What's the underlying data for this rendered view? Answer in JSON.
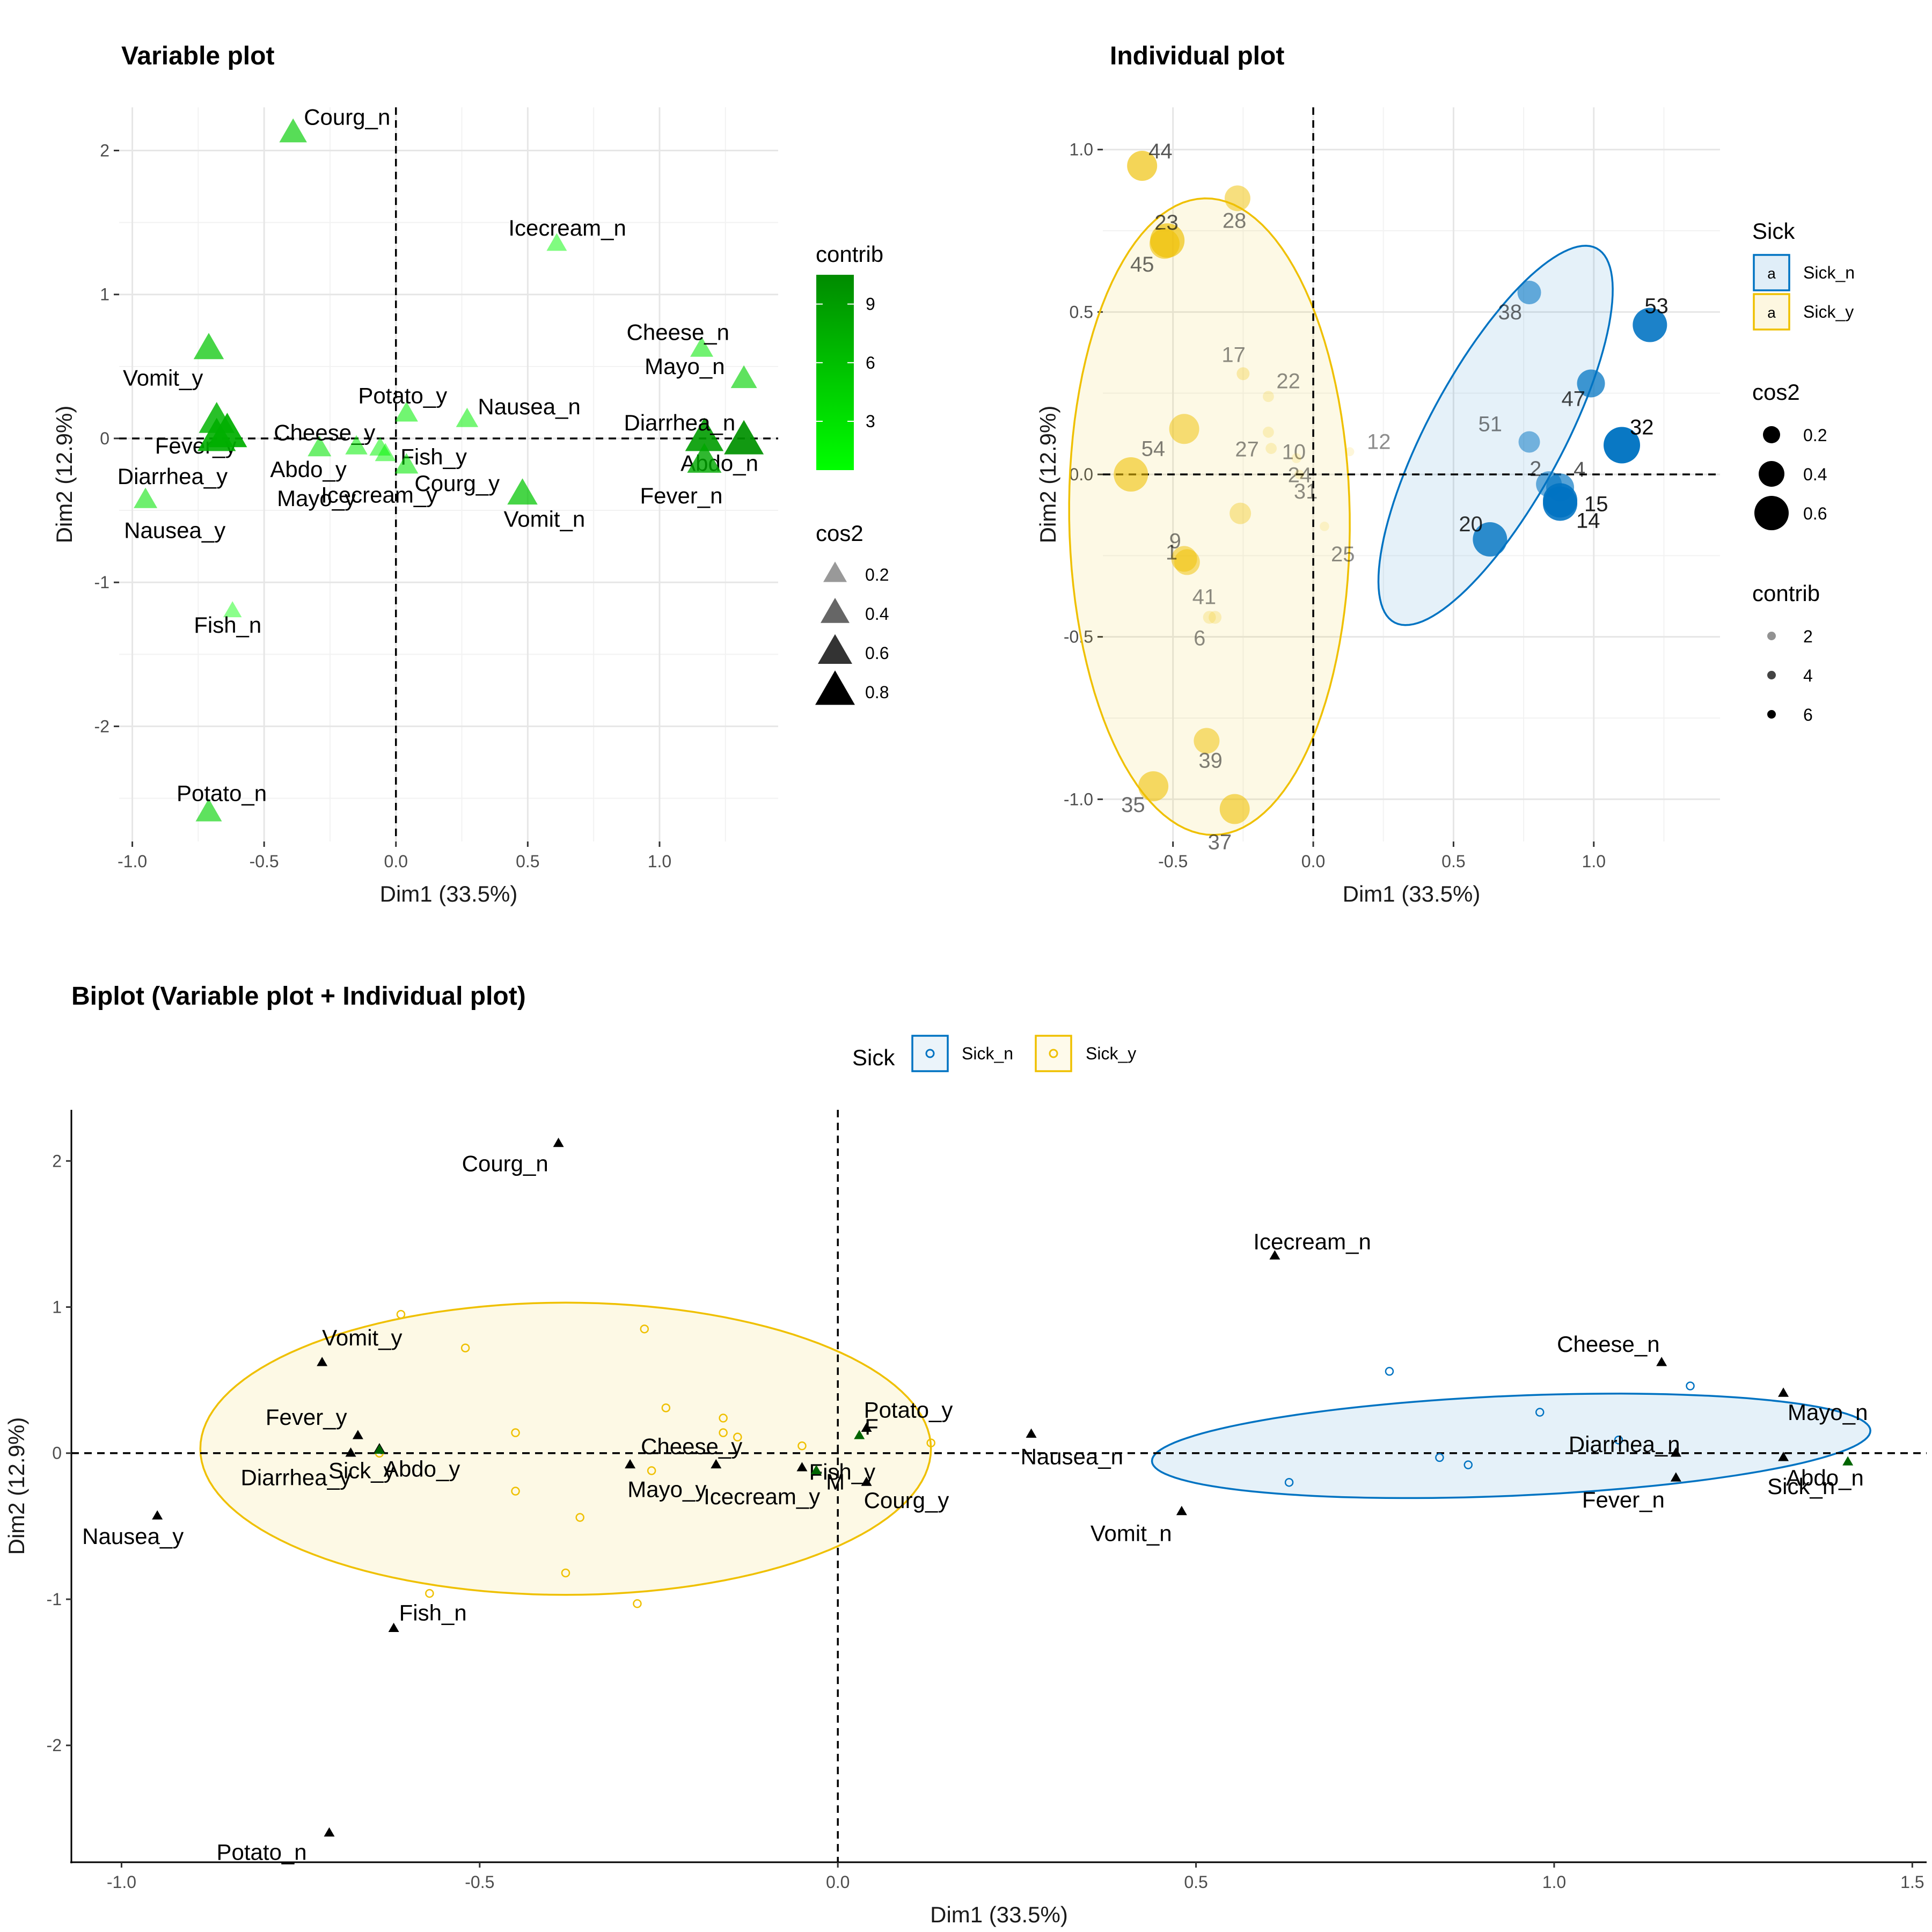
{
  "chart_data": [
    {
      "type": "scatter",
      "title": "Variable plot",
      "xlabel": "Dim1 (33.5%)",
      "ylabel": "Dim2 (12.9%)",
      "xlim": [
        -1.05,
        1.45
      ],
      "ylim": [
        -2.8,
        2.3
      ],
      "xticks": [
        -1.0,
        -0.5,
        0.0,
        0.5,
        1.0
      ],
      "xtick_labels": [
        "-1.0",
        "-0.5",
        "0.0",
        "0.5",
        "1.0"
      ],
      "yticks": [
        -2,
        -1,
        0,
        1,
        2
      ],
      "ytick_labels": [
        "-2",
        "-1",
        "0",
        "1",
        "2"
      ],
      "grid": true,
      "reference_lines": "dashed lines at x=0 and y=0",
      "marker": "triangle",
      "color_low": "#00FF00",
      "color_high": "#008B00",
      "legend_contrib": {
        "title": "contrib",
        "ticks": [
          3,
          6,
          9
        ],
        "range": [
          0.5,
          10.5
        ]
      },
      "legend_cos2": {
        "title": "cos2",
        "labels": [
          "0.2",
          "0.4",
          "0.6",
          "0.8"
        ],
        "values": [
          0.2,
          0.4,
          0.6,
          0.8
        ]
      },
      "legend_position": "right",
      "points": [
        {
          "label": "Courg_n",
          "x": -0.39,
          "y": 2.12,
          "cos2": 0.35,
          "contrib": 5.0
        },
        {
          "label": "Icecream_n",
          "x": 0.61,
          "y": 1.35,
          "cos2": 0.08,
          "contrib": 1.0
        },
        {
          "label": "Cheese_n",
          "x": 1.16,
          "y": 0.62,
          "cos2": 0.18,
          "contrib": 2.5
        },
        {
          "label": "Mayo_n",
          "x": 1.32,
          "y": 0.41,
          "cos2": 0.3,
          "contrib": 4.5
        },
        {
          "label": "Vomit_y",
          "x": -0.71,
          "y": 0.62,
          "cos2": 0.45,
          "contrib": 5.5
        },
        {
          "label": "Fever_y",
          "x": -0.68,
          "y": 0.12,
          "cos2": 0.65,
          "contrib": 7.0
        },
        {
          "label": "Diarrhea_y",
          "x": -0.68,
          "y": 0.0,
          "cos2": 0.75,
          "contrib": 7.5
        },
        {
          "label": "Abdo_y",
          "x": -0.64,
          "y": 0.03,
          "cos2": 0.8,
          "contrib": 7.5
        },
        {
          "label": "Nausea_y",
          "x": -0.95,
          "y": -0.43,
          "cos2": 0.2,
          "contrib": 3.0
        },
        {
          "label": "Potato_y",
          "x": 0.04,
          "y": 0.17,
          "cos2": 0.18,
          "contrib": 2.0
        },
        {
          "label": "Nausea_n",
          "x": 0.27,
          "y": 0.13,
          "cos2": 0.15,
          "contrib": 2.0
        },
        {
          "label": "Cheese_y",
          "x": -0.29,
          "y": -0.07,
          "cos2": 0.2,
          "contrib": 3.0
        },
        {
          "label": "Fish_y",
          "x": -0.06,
          "y": -0.07,
          "cos2": 0.12,
          "contrib": 1.5
        },
        {
          "label": "Mayo_y",
          "x": -0.15,
          "y": -0.06,
          "cos2": 0.15,
          "contrib": 2.0
        },
        {
          "label": "Courg_y",
          "x": 0.04,
          "y": -0.19,
          "cos2": 0.2,
          "contrib": 2.5
        },
        {
          "label": "Icecream_y",
          "x": -0.04,
          "y": -0.11,
          "cos2": 0.1,
          "contrib": 1.5
        },
        {
          "label": "Vomit_n",
          "x": 0.48,
          "y": -0.39,
          "cos2": 0.45,
          "contrib": 5.5
        },
        {
          "label": "Diarrhea_n",
          "x": 1.17,
          "y": 0.0,
          "cos2": 0.75,
          "contrib": 9.0
        },
        {
          "label": "Abdo_n",
          "x": 1.32,
          "y": -0.02,
          "cos2": 0.8,
          "contrib": 10.0
        },
        {
          "label": "Fever_n",
          "x": 1.17,
          "y": -0.16,
          "cos2": 0.6,
          "contrib": 8.0
        },
        {
          "label": "Fish_n",
          "x": -0.62,
          "y": -1.2,
          "cos2": 0.01,
          "contrib": 0.3
        },
        {
          "label": "Potato_n",
          "x": -0.71,
          "y": -2.6,
          "cos2": 0.3,
          "contrib": 4.5
        }
      ]
    },
    {
      "type": "scatter",
      "title": "Individual plot",
      "xlabel": "Dim1 (33.5%)",
      "ylabel": "Dim2 (12.9%)",
      "xlim": [
        -0.75,
        1.45
      ],
      "ylim": [
        -1.13,
        1.13
      ],
      "xticks": [
        -0.5,
        0.0,
        0.5,
        1.0
      ],
      "xtick_labels": [
        "-0.5",
        "0.0",
        "0.5",
        "1.0"
      ],
      "yticks": [
        -1.0,
        -0.5,
        0.0,
        0.5,
        1.0
      ],
      "ytick_labels": [
        "-1.0",
        "-0.5",
        "0.0",
        "0.5",
        "1.0"
      ],
      "grid": true,
      "reference_lines": "dashed lines at x=0 and y=0",
      "legend_sick": {
        "title": "Sick",
        "items": [
          "Sick_n",
          "Sick_y"
        ],
        "symbol": "a"
      },
      "legend_cos2": {
        "title": "cos2",
        "labels": [
          "0.2",
          "0.4",
          "0.6"
        ],
        "values": [
          0.2,
          0.4,
          0.6
        ]
      },
      "legend_contrib": {
        "title": "contrib",
        "labels": [
          "2",
          "4",
          "6"
        ],
        "values": [
          2,
          4,
          6
        ]
      },
      "legend_position": "right",
      "series": [
        {
          "name": "Sick_n",
          "color": "#0073C2",
          "ellipse": {
            "cx": 0.65,
            "cy": 0.12,
            "rx": 0.68,
            "ry": 0.23,
            "angle": 57
          }
        },
        {
          "name": "Sick_y",
          "color": "#EFC000",
          "ellipse": {
            "cx": -0.37,
            "cy": -0.13,
            "rx": 0.98,
            "ry": 0.5,
            "angle": 91
          }
        }
      ],
      "points": [
        {
          "label": "44",
          "group": "Sick_y",
          "x": -0.61,
          "y": 0.95,
          "cos2": 0.5,
          "contrib": 3.5
        },
        {
          "label": "28",
          "group": "Sick_y",
          "x": -0.27,
          "y": 0.85,
          "cos2": 0.4,
          "contrib": 2.5
        },
        {
          "label": "23",
          "group": "Sick_y",
          "x": -0.52,
          "y": 0.72,
          "cos2": 0.6,
          "contrib": 3.5
        },
        {
          "label": "45",
          "group": "Sick_y",
          "x": -0.53,
          "y": 0.71,
          "cos2": 0.5,
          "contrib": 3.0
        },
        {
          "label": "17",
          "group": "Sick_y",
          "x": -0.25,
          "y": 0.31,
          "cos2": 0.1,
          "contrib": 1.0
        },
        {
          "label": "22",
          "group": "Sick_y",
          "x": -0.16,
          "y": 0.24,
          "cos2": 0.06,
          "contrib": 0.5
        },
        {
          "label": "27",
          "group": "Sick_y",
          "x": -0.16,
          "y": 0.13,
          "cos2": 0.06,
          "contrib": 0.5
        },
        {
          "label": "54",
          "group": "Sick_y",
          "x": -0.46,
          "y": 0.14,
          "cos2": 0.5,
          "contrib": 2.5
        },
        {
          "label": "10",
          "group": "Sick_y",
          "x": -0.15,
          "y": 0.08,
          "cos2": 0.06,
          "contrib": 0.5
        },
        {
          "label": "12",
          "group": "Sick_y",
          "x": 0.13,
          "y": 0.07,
          "cos2": 0.01,
          "contrib": 0.2
        },
        {
          "label": "24",
          "group": "Sick_y",
          "x": -0.06,
          "y": 0.05,
          "cos2": 0.03,
          "contrib": 0.2
        },
        {
          "label": "31",
          "group": "Sick_y",
          "x": -0.05,
          "y": 0.0,
          "cos2": 0.02,
          "contrib": 0.2
        },
        {
          "label": "25",
          "group": "Sick_y",
          "x": 0.04,
          "y": -0.16,
          "cos2": 0.02,
          "contrib": 0.2
        },
        {
          "label": "0",
          "group": "Sick_y",
          "x": -0.65,
          "y": 0.0,
          "cos2": 0.6,
          "contrib": 3.0
        },
        {
          "label": "0",
          "group": "Sick_y",
          "x": -0.26,
          "y": -0.12,
          "cos2": 0.3,
          "contrib": 1.5
        },
        {
          "label": "9",
          "group": "Sick_y",
          "x": -0.46,
          "y": -0.26,
          "cos2": 0.4,
          "contrib": 2.5
        },
        {
          "label": "1",
          "group": "Sick_y",
          "x": -0.45,
          "y": -0.27,
          "cos2": 0.4,
          "contrib": 2.5
        },
        {
          "label": "41",
          "group": "Sick_y",
          "x": -0.37,
          "y": -0.44,
          "cos2": 0.1,
          "contrib": 0.6
        },
        {
          "label": "6",
          "group": "Sick_y",
          "x": -0.35,
          "y": -0.44,
          "cos2": 0.1,
          "contrib": 0.6
        },
        {
          "label": "39",
          "group": "Sick_y",
          "x": -0.38,
          "y": -0.82,
          "cos2": 0.4,
          "contrib": 2.5
        },
        {
          "label": "35",
          "group": "Sick_y",
          "x": -0.57,
          "y": -0.96,
          "cos2": 0.5,
          "contrib": 3.0
        },
        {
          "label": "37",
          "group": "Sick_y",
          "x": -0.28,
          "y": -1.03,
          "cos2": 0.5,
          "contrib": 3.0
        },
        {
          "label": "38",
          "group": "Sick_n",
          "x": 0.77,
          "y": 0.56,
          "cos2": 0.35,
          "contrib": 3.0
        },
        {
          "label": "53",
          "group": "Sick_n",
          "x": 1.2,
          "y": 0.46,
          "cos2": 0.6,
          "contrib": 5.0
        },
        {
          "label": "47",
          "group": "Sick_n",
          "x": 0.99,
          "y": 0.28,
          "cos2": 0.45,
          "contrib": 4.0
        },
        {
          "label": "32",
          "group": "Sick_n",
          "x": 1.1,
          "y": 0.09,
          "cos2": 0.65,
          "contrib": 5.5
        },
        {
          "label": "51",
          "group": "Sick_n",
          "x": 0.77,
          "y": 0.1,
          "cos2": 0.3,
          "contrib": 2.5
        },
        {
          "label": "2",
          "group": "Sick_n",
          "x": 0.84,
          "y": -0.03,
          "cos2": 0.4,
          "contrib": 3.0
        },
        {
          "label": "4",
          "group": "Sick_n",
          "x": 0.88,
          "y": -0.04,
          "cos2": 0.45,
          "contrib": 3.5
        },
        {
          "label": "15",
          "group": "Sick_n",
          "x": 0.88,
          "y": -0.08,
          "cos2": 0.6,
          "contrib": 5.0
        },
        {
          "label": "20",
          "group": "Sick_n",
          "x": 0.63,
          "y": -0.2,
          "cos2": 0.6,
          "contrib": 4.5
        },
        {
          "label": "14",
          "group": "Sick_n",
          "x": 0.88,
          "y": -0.09,
          "cos2": 0.6,
          "contrib": 5.0
        }
      ]
    },
    {
      "type": "scatter",
      "title": "Biplot (Variable plot + Individual plot)",
      "xlabel": "Dim1 (33.5%)",
      "ylabel": "Dim2 (12.9%)",
      "xlim": [
        -1.07,
        1.52
      ],
      "ylim": [
        -2.8,
        2.35
      ],
      "xticks": [
        -1.0,
        -0.5,
        0.0,
        0.5,
        1.0,
        1.5
      ],
      "xtick_labels": [
        "-1.0",
        "-0.5",
        "0.0",
        "0.5",
        "1.0",
        "1.5"
      ],
      "yticks": [
        -2,
        -1,
        0,
        1,
        2
      ],
      "ytick_labels": [
        "-2",
        "-1",
        "0",
        "1",
        "2"
      ],
      "grid": false,
      "reference_lines": "dashed lines at x=0 and y=0",
      "legend": {
        "title": "Sick",
        "items": [
          "Sick_n",
          "Sick_y"
        ],
        "position": "top"
      },
      "series": [
        {
          "name": "Sick_n",
          "color": "#0073C2",
          "ellipse": {
            "cx": 0.94,
            "cy": 0.05,
            "rx": 0.52,
            "ry": 0.33,
            "angle": 20
          }
        },
        {
          "name": "Sick_y",
          "color": "#EFC000",
          "ellipse": {
            "cx": -0.38,
            "cy": 0.03,
            "rx": 0.51,
            "ry": 1.0,
            "angle": 0
          }
        }
      ],
      "individuals": [
        {
          "group": "Sick_y",
          "x": -0.61,
          "y": 0.95
        },
        {
          "group": "Sick_y",
          "x": -0.27,
          "y": 0.85
        },
        {
          "group": "Sick_y",
          "x": -0.52,
          "y": 0.72
        },
        {
          "group": "Sick_y",
          "x": -0.24,
          "y": 0.31
        },
        {
          "group": "Sick_y",
          "x": -0.16,
          "y": 0.24
        },
        {
          "group": "Sick_y",
          "x": -0.16,
          "y": 0.14
        },
        {
          "group": "Sick_y",
          "x": -0.45,
          "y": 0.14
        },
        {
          "group": "Sick_y",
          "x": -0.14,
          "y": 0.11
        },
        {
          "group": "Sick_y",
          "x": -0.05,
          "y": 0.05
        },
        {
          "group": "Sick_y",
          "x": 0.13,
          "y": 0.07
        },
        {
          "group": "Sick_y",
          "x": -0.64,
          "y": 0.0
        },
        {
          "group": "Sick_y",
          "x": -0.26,
          "y": -0.12
        },
        {
          "group": "Sick_y",
          "x": -0.45,
          "y": -0.26
        },
        {
          "group": "Sick_y",
          "x": -0.36,
          "y": -0.44
        },
        {
          "group": "Sick_y",
          "x": -0.38,
          "y": -0.82
        },
        {
          "group": "Sick_y",
          "x": -0.57,
          "y": -0.96
        },
        {
          "group": "Sick_y",
          "x": -0.28,
          "y": -1.03
        },
        {
          "group": "Sick_n",
          "x": 0.77,
          "y": 0.56
        },
        {
          "group": "Sick_n",
          "x": 1.19,
          "y": 0.46
        },
        {
          "group": "Sick_n",
          "x": 0.98,
          "y": 0.28
        },
        {
          "group": "Sick_n",
          "x": 1.09,
          "y": 0.09
        },
        {
          "group": "Sick_n",
          "x": 0.84,
          "y": -0.03
        },
        {
          "group": "Sick_n",
          "x": 0.88,
          "y": -0.08
        },
        {
          "group": "Sick_n",
          "x": 0.63,
          "y": -0.2
        }
      ],
      "variables": [
        {
          "label": "Courg_n",
          "x": -0.39,
          "y": 2.12
        },
        {
          "label": "Icecream_n",
          "x": 0.61,
          "y": 1.35
        },
        {
          "label": "Vomit_y",
          "x": -0.72,
          "y": 0.62
        },
        {
          "label": "Cheese_n",
          "x": 1.15,
          "y": 0.62
        },
        {
          "label": "Mayo_n",
          "x": 1.32,
          "y": 0.41
        },
        {
          "label": "Fever_y",
          "x": -0.67,
          "y": 0.12
        },
        {
          "label": "Potato_y",
          "x": 0.04,
          "y": 0.17
        },
        {
          "label": "Diarrhea_y",
          "x": -0.68,
          "y": 0.0
        },
        {
          "label": "Abdo_y",
          "x": -0.64,
          "y": 0.03
        },
        {
          "label": "Cheese_y",
          "x": -0.29,
          "y": -0.08
        },
        {
          "label": "Fish_y",
          "x": -0.05,
          "y": -0.1
        },
        {
          "label": "Mayo_y",
          "x": -0.17,
          "y": -0.08
        },
        {
          "label": "Icecream_y",
          "x": -0.03,
          "y": -0.13
        },
        {
          "label": "Courg_y",
          "x": 0.04,
          "y": -0.2
        },
        {
          "label": "Nausea_n",
          "x": 0.27,
          "y": 0.13
        },
        {
          "label": "Vomit_n",
          "x": 0.48,
          "y": -0.4
        },
        {
          "label": "Diarrhea_n",
          "x": 1.17,
          "y": 0.0
        },
        {
          "label": "Fever_n",
          "x": 1.17,
          "y": -0.17
        },
        {
          "label": "Abdo_n",
          "x": 1.32,
          "y": -0.03
        },
        {
          "label": "Nausea_y",
          "x": -0.95,
          "y": -0.43
        },
        {
          "label": "Fish_n",
          "x": -0.62,
          "y": -1.2
        },
        {
          "label": "Potato_n",
          "x": -0.71,
          "y": -2.6
        }
      ],
      "supplementary": [
        {
          "label": "F",
          "x": 0.03,
          "y": 0.12
        },
        {
          "label": "M",
          "x": -0.03,
          "y": -0.12
        },
        {
          "label": "Sick_y",
          "x": -0.64,
          "y": 0.02
        },
        {
          "label": "Sick_n",
          "x": 1.41,
          "y": -0.06
        }
      ],
      "supplementary_color": "#006400"
    }
  ]
}
